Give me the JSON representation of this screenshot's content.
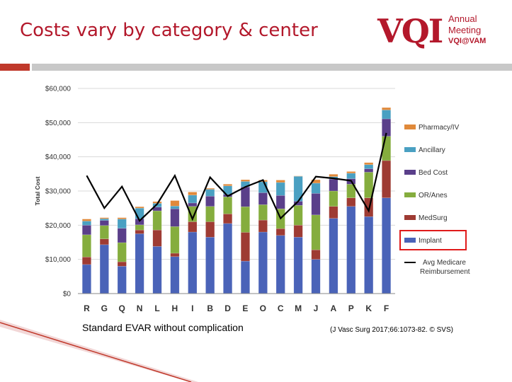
{
  "slide": {
    "title": "Costs vary by category & center",
    "caption_left": "Standard EVAR without complication",
    "caption_right": "(J Vasc Surg 2017;66:1073-82. © SVS)"
  },
  "logo": {
    "letters": "VQI",
    "line1": "Annual",
    "line2": "Meeting",
    "line3": "VQI@VAM"
  },
  "colors": {
    "title": "#b3182b",
    "implant": "#4a63b8",
    "medsurg": "#9e3b33",
    "or_anes": "#85ad3e",
    "bed_cost": "#5a3f8a",
    "ancillary": "#4aa0c2",
    "pharmacy": "#e0893a",
    "medicare_line": "#000000"
  },
  "chart_data": {
    "type": "bar",
    "stacked": true,
    "ylabel": "Total Cost",
    "ylim": [
      0,
      60000
    ],
    "yticks": [
      "$0",
      "$10,000",
      "$20,000",
      "$30,000",
      "$40,000",
      "$50,000",
      "$60,000"
    ],
    "grid": true,
    "legend_position": "right",
    "categories": [
      "R",
      "G",
      "Q",
      "N",
      "L",
      "H",
      "I",
      "B",
      "D",
      "E",
      "O",
      "C",
      "M",
      "J",
      "A",
      "P",
      "K",
      "F"
    ],
    "series": [
      {
        "name": "Implant",
        "values": [
          8500,
          14300,
          8000,
          17500,
          13800,
          10800,
          18000,
          16500,
          20500,
          9500,
          18000,
          17000,
          16500,
          10000,
          22000,
          25500,
          22500,
          28000
        ]
      },
      {
        "name": "MedSurg",
        "values": [
          2200,
          1700,
          1300,
          1100,
          4800,
          1000,
          3000,
          4500,
          2800,
          8400,
          3500,
          2000,
          3500,
          2800,
          3500,
          2500,
          5500,
          10900
        ]
      },
      {
        "name": "OR/Anes",
        "values": [
          6500,
          3900,
          5600,
          1500,
          5600,
          7800,
          4500,
          4500,
          5000,
          7500,
          4500,
          5800,
          5800,
          10200,
          4500,
          4000,
          7500,
          7100
        ]
      },
      {
        "name": "Bed Cost",
        "values": [
          2800,
          1500,
          4200,
          1800,
          1100,
          5200,
          1000,
          3000,
          700,
          5800,
          3500,
          3900,
          1200,
          6300,
          3500,
          1600,
          1000,
          5100
        ]
      },
      {
        "name": "Ancillary",
        "values": [
          1200,
          500,
          2700,
          3100,
          1100,
          800,
          2300,
          2000,
          2500,
          1600,
          3200,
          3800,
          7300,
          3000,
          700,
          1600,
          1200,
          2600
        ]
      },
      {
        "name": "Pharmacy/IV",
        "values": [
          600,
          300,
          400,
          400,
          500,
          1600,
          900,
          300,
          500,
          500,
          500,
          700,
          100,
          1000,
          700,
          500,
          600,
          700
        ]
      }
    ],
    "line_series": {
      "name": "Avg Medicare Reimbursement",
      "values": [
        34500,
        25000,
        31300,
        21300,
        26200,
        34500,
        21800,
        34000,
        28500,
        31200,
        33200,
        22000,
        27000,
        34200,
        33700,
        33000,
        24200,
        47000
      ]
    }
  }
}
